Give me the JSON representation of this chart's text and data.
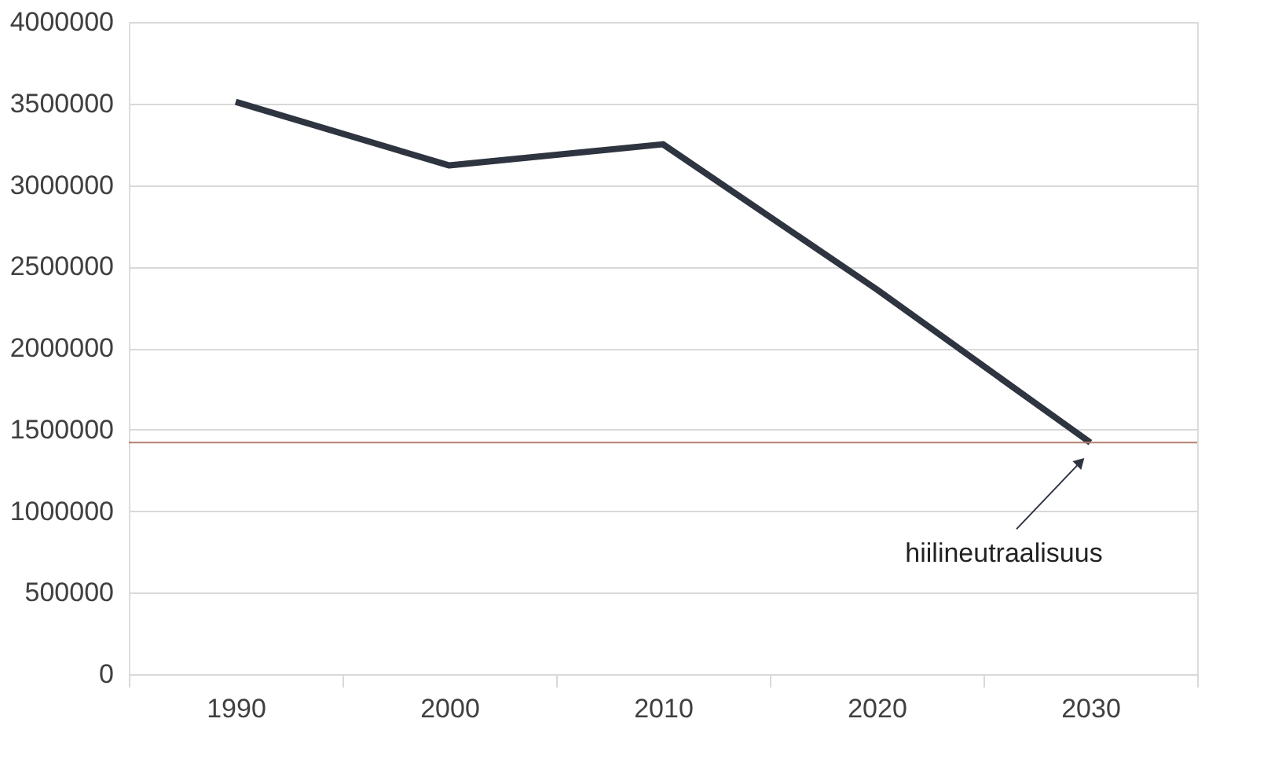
{
  "chart_data": {
    "type": "line",
    "categories": [
      "1990",
      "2000",
      "2010",
      "2020",
      "2030"
    ],
    "series": [
      {
        "color": "#2e3440",
        "values": [
          3510000,
          3120000,
          3250000,
          2360000,
          1420000
        ]
      }
    ],
    "ylim": [
      0,
      4000000
    ],
    "yticks": [
      0,
      500000,
      1000000,
      1500000,
      2000000,
      2500000,
      3000000,
      3500000,
      4000000
    ],
    "grid": "y",
    "marker": "none",
    "line_style": "solid",
    "ref_lines": [
      {
        "axis": "y",
        "value": 1420000,
        "color": "#b58070"
      }
    ],
    "annotations": [
      "hiilineutraalisuus"
    ]
  }
}
